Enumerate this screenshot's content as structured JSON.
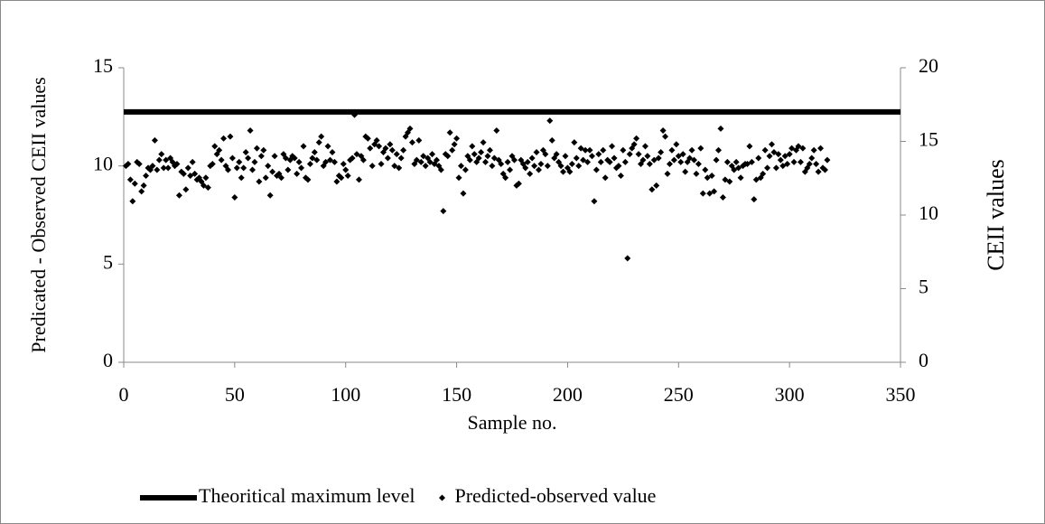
{
  "chart_data": {
    "type": "scatter",
    "xlabel": "Sample no.",
    "ylabel": "Predicated - Observed CEII values",
    "y2label": "CEII values",
    "xlim": [
      0,
      350
    ],
    "xticks": [
      0,
      50,
      100,
      150,
      200,
      250,
      300,
      350
    ],
    "ylim": [
      0,
      15
    ],
    "yticks": [
      0,
      5,
      10,
      15
    ],
    "y2lim": [
      0,
      20
    ],
    "y2ticks": [
      0,
      5,
      10,
      15,
      20
    ],
    "legend": "bottom",
    "series": [
      {
        "name": "Theoritical maximum level",
        "type": "line",
        "axis": "y2",
        "color": "#000000",
        "x": [
          0,
          350
        ],
        "values": [
          17,
          17
        ]
      },
      {
        "name": "Predicted-observed value",
        "type": "scatter",
        "color": "#000000",
        "x": [
          1,
          2,
          3,
          4,
          5,
          6,
          7,
          8,
          9,
          10,
          11,
          12,
          13,
          14,
          15,
          16,
          17,
          18,
          19,
          20,
          21,
          22,
          23,
          24,
          25,
          26,
          27,
          28,
          29,
          30,
          31,
          32,
          33,
          34,
          35,
          36,
          37,
          38,
          39,
          40,
          41,
          42,
          43,
          44,
          45,
          46,
          47,
          48,
          49,
          50,
          51,
          52,
          53,
          54,
          55,
          56,
          57,
          58,
          59,
          60,
          61,
          62,
          63,
          64,
          65,
          66,
          67,
          68,
          69,
          70,
          71,
          72,
          73,
          74,
          75,
          76,
          77,
          78,
          79,
          80,
          81,
          82,
          83,
          84,
          85,
          86,
          87,
          88,
          89,
          90,
          91,
          92,
          93,
          94,
          95,
          96,
          97,
          98,
          99,
          100,
          101,
          102,
          103,
          104,
          105,
          106,
          107,
          108,
          109,
          110,
          111,
          112,
          113,
          114,
          115,
          116,
          117,
          118,
          119,
          120,
          121,
          122,
          123,
          124,
          125,
          126,
          127,
          128,
          129,
          130,
          131,
          132,
          133,
          134,
          135,
          136,
          137,
          138,
          139,
          140,
          141,
          142,
          143,
          144,
          145,
          146,
          147,
          148,
          149,
          150,
          151,
          152,
          153,
          154,
          155,
          156,
          157,
          158,
          159,
          160,
          161,
          162,
          163,
          164,
          165,
          166,
          167,
          168,
          169,
          170,
          171,
          172,
          173,
          174,
          175,
          176,
          177,
          178,
          179,
          180,
          181,
          182,
          183,
          184,
          185,
          186,
          187,
          188,
          189,
          190,
          191,
          192,
          193,
          194,
          195,
          196,
          197,
          198,
          199,
          200,
          201,
          202,
          203,
          204,
          205,
          206,
          207,
          208,
          209,
          210,
          211,
          212,
          213,
          214,
          215,
          216,
          217,
          218,
          219,
          220,
          221,
          222,
          223,
          224,
          225,
          226,
          227,
          228,
          229,
          230,
          231,
          232,
          233,
          234,
          235,
          236,
          237,
          238,
          239,
          240,
          241,
          242,
          243,
          244,
          245,
          246,
          247,
          248,
          249,
          250,
          251,
          252,
          253,
          254,
          255,
          256,
          257,
          258,
          259,
          260,
          261,
          262,
          263,
          264,
          265,
          266,
          267,
          268,
          269,
          270,
          271,
          272,
          273,
          274,
          275,
          276,
          277,
          278,
          279,
          280,
          281,
          282,
          283,
          284,
          285,
          286,
          287,
          288,
          289,
          290,
          291,
          292,
          293,
          294,
          295,
          296,
          297,
          298,
          299,
          300,
          301,
          302,
          303,
          304,
          305,
          306,
          307,
          308,
          309,
          310,
          311,
          312,
          313,
          314,
          315,
          316,
          317
        ],
        "values": [
          10.0,
          10.1,
          9.3,
          8.2,
          9.1,
          10.2,
          10.1,
          8.7,
          9.0,
          9.5,
          9.9,
          9.8,
          10.0,
          11.3,
          9.8,
          10.3,
          10.6,
          9.9,
          10.3,
          9.9,
          10.4,
          10.2,
          10.0,
          10.1,
          8.5,
          9.7,
          9.6,
          8.8,
          9.9,
          9.5,
          10.2,
          9.6,
          9.3,
          9.4,
          9.2,
          9.0,
          9.4,
          8.9,
          10.0,
          10.1,
          11.0,
          10.6,
          10.8,
          10.3,
          11.4,
          10.0,
          9.8,
          11.5,
          10.4,
          8.4,
          9.9,
          10.2,
          9.4,
          9.9,
          10.7,
          10.4,
          11.8,
          9.8,
          10.2,
          10.9,
          9.2,
          10.5,
          10.8,
          9.4,
          10.0,
          8.5,
          9.7,
          10.5,
          9.5,
          9.6,
          9.4,
          10.6,
          10.4,
          9.8,
          10.3,
          10.5,
          10.4,
          9.6,
          10.2,
          9.9,
          11.0,
          9.4,
          9.3,
          10.1,
          10.4,
          10.7,
          10.3,
          11.2,
          11.5,
          10.0,
          10.2,
          11.0,
          10.3,
          10.7,
          10.2,
          9.2,
          9.5,
          9.4,
          10.1,
          9.8,
          9.5,
          10.3,
          10.4,
          12.6,
          10.6,
          9.3,
          10.5,
          10.3,
          11.5,
          11.4,
          10.9,
          10.0,
          11.1,
          11.3,
          11.0,
          10.1,
          10.7,
          10.9,
          10.4,
          11.1,
          10.8,
          10.0,
          10.6,
          9.9,
          10.4,
          10.8,
          11.5,
          11.7,
          11.9,
          11.2,
          10.1,
          10.3,
          11.3,
          10.2,
          10.5,
          10.0,
          10.4,
          10.2,
          10.6,
          10.1,
          10.3,
          10.0,
          9.8,
          7.7,
          10.6,
          10.5,
          11.7,
          10.8,
          11.1,
          11.4,
          9.4,
          10.0,
          8.6,
          9.8,
          10.5,
          10.3,
          11.0,
          10.6,
          10.2,
          10.4,
          10.7,
          11.2,
          10.2,
          10.5,
          10.8,
          10.0,
          10.4,
          11.8,
          10.3,
          10.1,
          9.6,
          9.4,
          10.2,
          9.8,
          10.5,
          10.3,
          9.0,
          9.1,
          10.3,
          10.1,
          9.9,
          10.2,
          9.6,
          10.4,
          10.0,
          10.7,
          9.8,
          10.1,
          10.8,
          10.6,
          10.0,
          12.3,
          11.3,
          10.4,
          10.6,
          10.2,
          10.0,
          9.7,
          10.5,
          9.9,
          9.7,
          10.1,
          11.2,
          10.4,
          10.0,
          10.9,
          10.3,
          10.8,
          10.2,
          10.8,
          10.5,
          8.2,
          9.8,
          10.6,
          10.2,
          10.8,
          9.4,
          10.3,
          10.2,
          11.0,
          10.4,
          9.9,
          10.0,
          9.5,
          10.8,
          10.2,
          5.3,
          10.6,
          10.9,
          11.1,
          11.4,
          10.6,
          10.1,
          10.3,
          11.0,
          10.5,
          10.1,
          8.8,
          10.3,
          9.0,
          10.4,
          10.7,
          11.8,
          11.5,
          9.6,
          10.1,
          10.8,
          10.3,
          11.1,
          10.5,
          10.2,
          10.6,
          9.7,
          10.2,
          10.4,
          10.8,
          10.3,
          9.6,
          10.1,
          10.9,
          8.6,
          9.8,
          9.4,
          8.6,
          9.5,
          8.7,
          10.3,
          10.8,
          11.9,
          8.4,
          9.3,
          10.2,
          9.2,
          10.0,
          9.8,
          10.2,
          9.9,
          9.4,
          10.0,
          10.1,
          10.1,
          11.0,
          10.2,
          8.3,
          9.3,
          10.4,
          9.4,
          9.6,
          10.8,
          9.9,
          10.5,
          11.1,
          10.7,
          9.9,
          10.6,
          10.3,
          10.0,
          10.5,
          10.1,
          10.6,
          10.9,
          10.2,
          10.8,
          11.0,
          10.2,
          10.9,
          9.7,
          9.9,
          10.1,
          10.4,
          10.8,
          10.1,
          9.7,
          10.9,
          9.9,
          9.8,
          10.3
        ]
      }
    ]
  }
}
